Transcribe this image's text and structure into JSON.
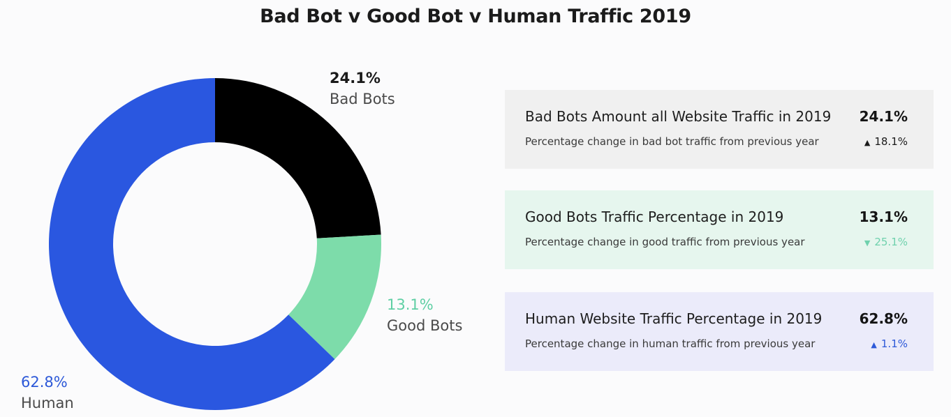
{
  "chart_data": {
    "type": "pie",
    "title": "Bad Bot v Good Bot v Human Traffic 2019",
    "slices": [
      {
        "label": "Bad Bots",
        "value": 24.1,
        "value_label": "24.1%",
        "color": "#000000"
      },
      {
        "label": "Good Bots",
        "value": 13.1,
        "value_label": "13.1%",
        "color": "#7ddcaa"
      },
      {
        "label": "Human",
        "value": 62.8,
        "value_label": "62.8%",
        "color": "#2a57e0"
      }
    ]
  },
  "label_colors": {
    "bad": "#1a1a1a",
    "good": "#5fcfa4",
    "human": "#2d59d8",
    "category": "#4a4a4a"
  },
  "cards": [
    {
      "heading": "Bad Bots Amount all Website Traffic in 2019",
      "value": "24.1%",
      "sub": "Percentage change in bad bot traffic from previous year",
      "change": "18.1%",
      "direction_icon": "triangle-up-icon",
      "arrow": "▲",
      "background": "#f0f0f0",
      "change_color": "#1a1a1a"
    },
    {
      "heading": "Good Bots Traffic Percentage in 2019",
      "value": "13.1%",
      "sub": "Percentage change in good traffic from previous year",
      "change": "25.1%",
      "direction_icon": "triangle-down-icon",
      "arrow": "▼",
      "background": "#e6f6ee",
      "change_color": "#6fd1ad"
    },
    {
      "heading": "Human Website Traffic Percentage in 2019",
      "value": "62.8%",
      "sub": "Percentage change in human traffic from previous year",
      "change": "1.1%",
      "direction_icon": "triangle-up-icon",
      "arrow": "▲",
      "background": "#ebebfa",
      "change_color": "#2d59d8"
    }
  ]
}
